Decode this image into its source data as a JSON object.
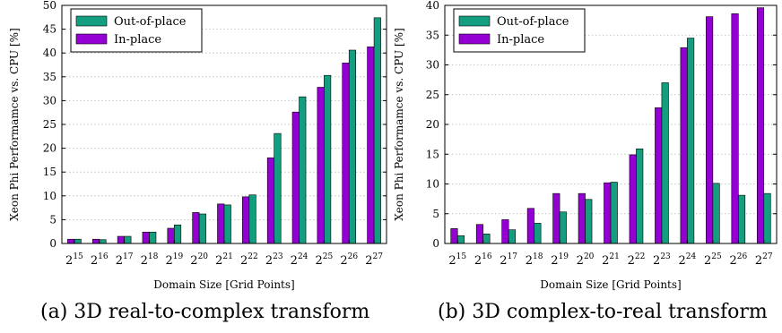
{
  "chart_data": [
    {
      "type": "bar",
      "xlabel": "Domain Size [Grid Points]",
      "ylabel": "Xeon Phi Performamce vs. CPU [%]",
      "categories": [
        {
          "base": "2",
          "exp": "15"
        },
        {
          "base": "2",
          "exp": "16"
        },
        {
          "base": "2",
          "exp": "17"
        },
        {
          "base": "2",
          "exp": "18"
        },
        {
          "base": "2",
          "exp": "19"
        },
        {
          "base": "2",
          "exp": "20"
        },
        {
          "base": "2",
          "exp": "21"
        },
        {
          "base": "2",
          "exp": "22"
        },
        {
          "base": "2",
          "exp": "23"
        },
        {
          "base": "2",
          "exp": "24"
        },
        {
          "base": "2",
          "exp": "25"
        },
        {
          "base": "2",
          "exp": "26"
        },
        {
          "base": "2",
          "exp": "27"
        }
      ],
      "series": [
        {
          "name": "In-place",
          "color": "#9400D3",
          "values": [
            0.9,
            0.9,
            1.5,
            2.4,
            3.2,
            6.5,
            8.3,
            9.8,
            18.0,
            27.6,
            32.8,
            37.9,
            41.3
          ]
        },
        {
          "name": "Out-of-place",
          "color": "#139E7F",
          "values": [
            0.9,
            0.8,
            1.5,
            2.4,
            3.9,
            6.2,
            8.1,
            10.2,
            23.1,
            30.8,
            35.3,
            40.6,
            47.4
          ]
        }
      ],
      "legend_order": [
        "Out-of-place",
        "In-place"
      ],
      "ylim": [
        0,
        50
      ],
      "yticks": [
        0,
        5,
        10,
        15,
        20,
        25,
        30,
        35,
        40,
        45,
        50
      ],
      "grid": true,
      "legend_position": "top-left",
      "caption": "(a) 3D real-to-complex transform"
    },
    {
      "type": "bar",
      "xlabel": "Domain Size [Grid Points]",
      "ylabel": "Xeon Phi Performamce vs. CPU [%]",
      "categories": [
        {
          "base": "2",
          "exp": "15"
        },
        {
          "base": "2",
          "exp": "16"
        },
        {
          "base": "2",
          "exp": "17"
        },
        {
          "base": "2",
          "exp": "18"
        },
        {
          "base": "2",
          "exp": "19"
        },
        {
          "base": "2",
          "exp": "20"
        },
        {
          "base": "2",
          "exp": "21"
        },
        {
          "base": "2",
          "exp": "22"
        },
        {
          "base": "2",
          "exp": "23"
        },
        {
          "base": "2",
          "exp": "24"
        },
        {
          "base": "2",
          "exp": "25"
        },
        {
          "base": "2",
          "exp": "26"
        },
        {
          "base": "2",
          "exp": "27"
        }
      ],
      "series": [
        {
          "name": "In-place",
          "color": "#9400D3",
          "values": [
            2.5,
            3.2,
            4.0,
            5.9,
            8.4,
            8.4,
            10.2,
            14.9,
            22.8,
            32.9,
            38.1,
            38.6,
            39.6
          ]
        },
        {
          "name": "Out-of-place",
          "color": "#139E7F",
          "values": [
            1.3,
            1.6,
            2.3,
            3.4,
            5.3,
            7.4,
            10.3,
            15.9,
            27.0,
            34.5,
            10.1,
            8.1,
            8.4
          ]
        }
      ],
      "legend_order": [
        "Out-of-place",
        "In-place"
      ],
      "ylim": [
        0,
        40
      ],
      "yticks": [
        0,
        5,
        10,
        15,
        20,
        25,
        30,
        35,
        40
      ],
      "grid": true,
      "legend_position": "top-left",
      "caption": "(b) 3D complex-to-real transform"
    }
  ]
}
